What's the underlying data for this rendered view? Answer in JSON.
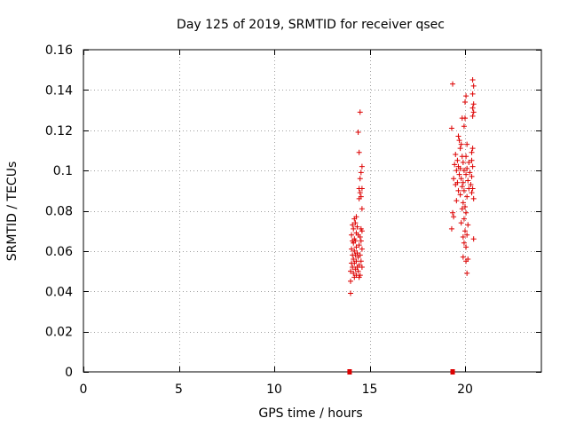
{
  "chart_data": {
    "type": "scatter",
    "title": "Day 125 of 2019, SRMTID for receiver qsec",
    "xlabel": "GPS time / hours",
    "ylabel": "SRMTID / TECUs",
    "xlim": [
      0,
      24
    ],
    "ylim": [
      0,
      0.16
    ],
    "xticks": [
      "0",
      "5",
      "10",
      "15",
      "20"
    ],
    "xtick_values": [
      0,
      5,
      10,
      15,
      20
    ],
    "yticks": [
      "0",
      "0.02",
      "0.04",
      "0.06",
      "0.08",
      "0.1",
      "0.12",
      "0.14",
      "0.16"
    ],
    "ytick_values": [
      0,
      0.02,
      0.04,
      0.06,
      0.08,
      0.1,
      0.12,
      0.14,
      0.16
    ],
    "grid": true,
    "marker": "plus",
    "color": "#dd0000",
    "zero_markers_x": [
      13.95,
      19.35
    ],
    "series": [
      {
        "points": [
          [
            14.5,
            0.129
          ],
          [
            14.4,
            0.119
          ],
          [
            14.45,
            0.109
          ],
          [
            14.6,
            0.102
          ],
          [
            14.55,
            0.099
          ],
          [
            14.5,
            0.096
          ],
          [
            14.45,
            0.091
          ],
          [
            14.6,
            0.091
          ],
          [
            14.5,
            0.089
          ],
          [
            14.55,
            0.087
          ],
          [
            14.45,
            0.086
          ],
          [
            14.6,
            0.081
          ],
          [
            14.3,
            0.077
          ],
          [
            14.2,
            0.076
          ],
          [
            14.25,
            0.074
          ],
          [
            14.1,
            0.073
          ],
          [
            14.35,
            0.072
          ],
          [
            14.15,
            0.071
          ],
          [
            14.55,
            0.071
          ],
          [
            14.6,
            0.07
          ],
          [
            14.3,
            0.069
          ],
          [
            14.05,
            0.068
          ],
          [
            14.4,
            0.068
          ],
          [
            14.5,
            0.067
          ],
          [
            14.2,
            0.066
          ],
          [
            14.1,
            0.065
          ],
          [
            14.25,
            0.065
          ],
          [
            14.55,
            0.065
          ],
          [
            14.15,
            0.064
          ],
          [
            14.45,
            0.063
          ],
          [
            14.3,
            0.062
          ],
          [
            14.05,
            0.061
          ],
          [
            14.6,
            0.061
          ],
          [
            14.2,
            0.06
          ],
          [
            14.35,
            0.059
          ],
          [
            14.1,
            0.058
          ],
          [
            14.25,
            0.058
          ],
          [
            14.5,
            0.058
          ],
          [
            14.4,
            0.057
          ],
          [
            14.15,
            0.056
          ],
          [
            14.3,
            0.055
          ],
          [
            14.55,
            0.055
          ],
          [
            14.05,
            0.054
          ],
          [
            14.2,
            0.054
          ],
          [
            14.45,
            0.053
          ],
          [
            14.1,
            0.052
          ],
          [
            14.35,
            0.052
          ],
          [
            14.6,
            0.052
          ],
          [
            14.25,
            0.051
          ],
          [
            14.0,
            0.05
          ],
          [
            14.4,
            0.05
          ],
          [
            14.15,
            0.049
          ],
          [
            14.3,
            0.048
          ],
          [
            14.5,
            0.048
          ],
          [
            14.2,
            0.047
          ],
          [
            14.45,
            0.047
          ],
          [
            14.0,
            0.045
          ],
          [
            14.0,
            0.039
          ],
          [
            19.35,
            0.143
          ],
          [
            20.4,
            0.145
          ],
          [
            20.45,
            0.142
          ],
          [
            20.4,
            0.138
          ],
          [
            20.05,
            0.137
          ],
          [
            20.0,
            0.134
          ],
          [
            20.45,
            0.133
          ],
          [
            20.4,
            0.131
          ],
          [
            20.45,
            0.129
          ],
          [
            19.85,
            0.126
          ],
          [
            20.0,
            0.126
          ],
          [
            20.4,
            0.127
          ],
          [
            19.95,
            0.122
          ],
          [
            19.3,
            0.121
          ],
          [
            19.65,
            0.117
          ],
          [
            19.7,
            0.115
          ],
          [
            19.8,
            0.113
          ],
          [
            20.1,
            0.113
          ],
          [
            19.75,
            0.111
          ],
          [
            20.4,
            0.111
          ],
          [
            20.35,
            0.109
          ],
          [
            19.5,
            0.108
          ],
          [
            19.85,
            0.107
          ],
          [
            20.05,
            0.107
          ],
          [
            19.6,
            0.105
          ],
          [
            19.9,
            0.104
          ],
          [
            20.2,
            0.104
          ],
          [
            20.35,
            0.105
          ],
          [
            19.45,
            0.103
          ],
          [
            19.65,
            0.102
          ],
          [
            19.75,
            0.101
          ],
          [
            20.1,
            0.101
          ],
          [
            20.4,
            0.102
          ],
          [
            19.55,
            0.1
          ],
          [
            19.95,
            0.1
          ],
          [
            20.25,
            0.099
          ],
          [
            19.7,
            0.098
          ],
          [
            20.05,
            0.098
          ],
          [
            20.35,
            0.097
          ],
          [
            19.4,
            0.096
          ],
          [
            19.8,
            0.096
          ],
          [
            20.15,
            0.095
          ],
          [
            19.6,
            0.094
          ],
          [
            19.9,
            0.094
          ],
          [
            20.3,
            0.093
          ],
          [
            19.5,
            0.093
          ],
          [
            19.85,
            0.092
          ],
          [
            20.2,
            0.091
          ],
          [
            20.4,
            0.091
          ],
          [
            19.65,
            0.09
          ],
          [
            19.95,
            0.09
          ],
          [
            20.35,
            0.089
          ],
          [
            19.75,
            0.088
          ],
          [
            20.1,
            0.087
          ],
          [
            20.45,
            0.086
          ],
          [
            19.55,
            0.085
          ],
          [
            19.9,
            0.084
          ],
          [
            20.0,
            0.082
          ],
          [
            19.85,
            0.081
          ],
          [
            19.35,
            0.079
          ],
          [
            20.05,
            0.079
          ],
          [
            19.4,
            0.077
          ],
          [
            19.95,
            0.076
          ],
          [
            19.8,
            0.074
          ],
          [
            20.15,
            0.073
          ],
          [
            19.3,
            0.071
          ],
          [
            20.0,
            0.07
          ],
          [
            20.1,
            0.068
          ],
          [
            19.9,
            0.067
          ],
          [
            20.45,
            0.066
          ],
          [
            19.95,
            0.064
          ],
          [
            20.05,
            0.062
          ],
          [
            19.9,
            0.057
          ],
          [
            20.15,
            0.056
          ],
          [
            20.05,
            0.055
          ],
          [
            20.1,
            0.049
          ]
        ]
      }
    ]
  }
}
